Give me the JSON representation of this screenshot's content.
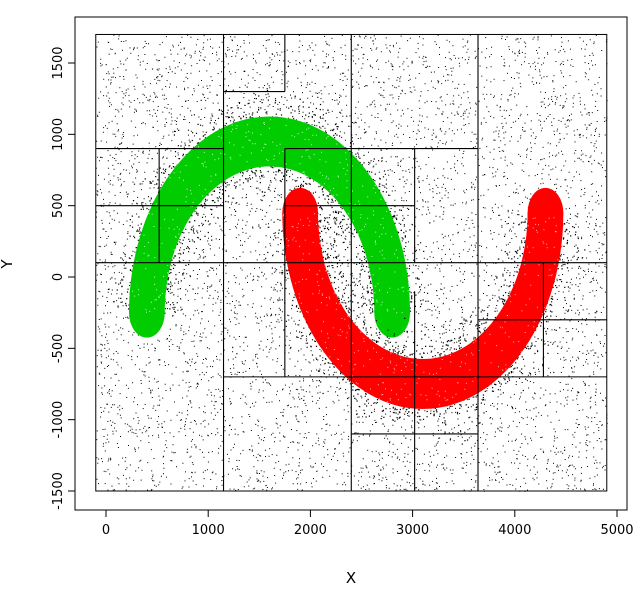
{
  "chart_data": {
    "type": "scatter",
    "title": "",
    "xlabel": "X",
    "ylabel": "Y",
    "xlim": [
      -300,
      5000
    ],
    "ylim": [
      -1600,
      1750
    ],
    "x_ticks": [
      0,
      1000,
      2000,
      3000,
      4000,
      5000
    ],
    "y_ticks": [
      -1500,
      -1000,
      -500,
      0,
      500,
      1000,
      1500
    ],
    "grid": false,
    "legend": "none",
    "series": [
      {
        "kind": "background-noise",
        "color": "#000000",
        "count": 6000,
        "x_range": [
          -100,
          4900
        ],
        "y_range": [
          -1500,
          1700
        ]
      },
      {
        "kind": "upper-moon",
        "color": "#00cc00",
        "center_x": 1600,
        "center_y": -250,
        "radius": 1200,
        "thickness": 350,
        "angle_range_deg": [
          0,
          180
        ]
      },
      {
        "kind": "lower-moon",
        "color": "#ff0000",
        "center_x": 3100,
        "center_y": 450,
        "radius": 1200,
        "thickness": 350,
        "angle_range_deg": [
          180,
          360
        ]
      }
    ],
    "partition_bounds": [
      [
        -100,
        4900
      ],
      [
        -1500,
        1700
      ]
    ],
    "partition_segments": [
      {
        "orientation": "v",
        "at": 1150,
        "from": -1500,
        "to": 1700
      },
      {
        "orientation": "v",
        "at": 1750,
        "from": 1300,
        "to": 1700
      },
      {
        "orientation": "v",
        "at": 2400,
        "from": -1500,
        "to": 1700
      },
      {
        "orientation": "v",
        "at": 3020,
        "from": -1500,
        "to": -100
      },
      {
        "orientation": "v",
        "at": 3640,
        "from": -1500,
        "to": 1700
      },
      {
        "orientation": "h",
        "at": 100,
        "from": -100,
        "to": 4900
      },
      {
        "orientation": "h",
        "at": 900,
        "from": -100,
        "to": 1150
      },
      {
        "orientation": "h",
        "at": 500,
        "from": -100,
        "to": 1150
      },
      {
        "orientation": "v",
        "at": 520,
        "from": 100,
        "to": 900
      },
      {
        "orientation": "h",
        "at": 1300,
        "from": 1150,
        "to": 1750
      },
      {
        "orientation": "h",
        "at": 900,
        "from": 1750,
        "to": 3640
      },
      {
        "orientation": "h",
        "at": 500,
        "from": 1750,
        "to": 3020
      },
      {
        "orientation": "v",
        "at": 1750,
        "from": -700,
        "to": 900
      },
      {
        "orientation": "v",
        "at": 3020,
        "from": 100,
        "to": 900
      },
      {
        "orientation": "h",
        "at": -700,
        "from": 1150,
        "to": 4900
      },
      {
        "orientation": "h",
        "at": -300,
        "from": 3640,
        "to": 4900
      },
      {
        "orientation": "v",
        "at": 4280,
        "from": -700,
        "to": 100
      },
      {
        "orientation": "h",
        "at": -1100,
        "from": 2400,
        "to": 3640
      }
    ]
  }
}
